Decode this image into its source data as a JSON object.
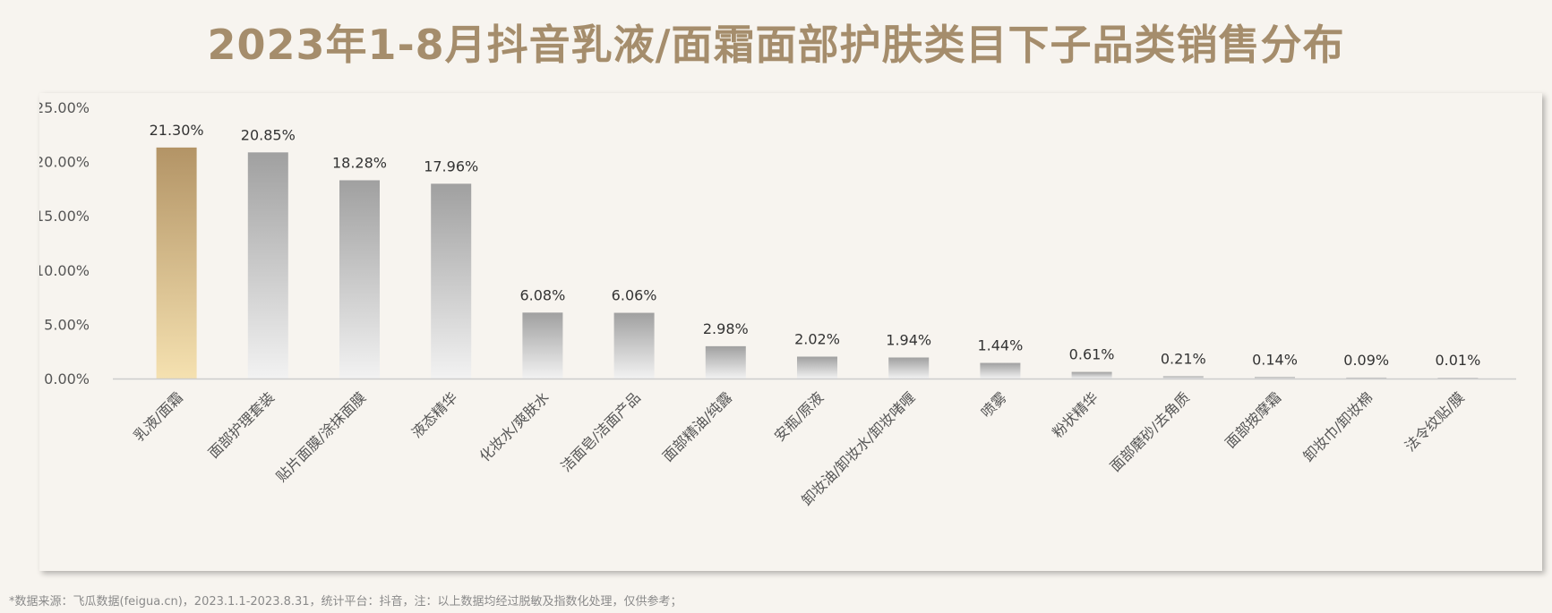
{
  "title": "2023年1-8月抖音乳液/面霜面部护肤类目下子品类销售分布",
  "footnote": "*数据来源：飞瓜数据(feigua.cn)，2023.1.1-2023.8.31，统计平台：抖音，注：以上数据均经过脱敏及指数化处理，仅供参考；",
  "colors": {
    "title": "#a58d6c",
    "highlight_top": "#b39466",
    "highlight_bottom": "#f5e1b0",
    "bar_top": "#a0a0a0",
    "bar_bottom": "#f2f2f2",
    "axis_text": "#555555",
    "axis_line": "#cccccc"
  },
  "chart_data": {
    "type": "bar",
    "categories": [
      "乳液/面霜",
      "面部护理套装",
      "贴片面膜/涂抹面膜",
      "液态精华",
      "化妆水/爽肤水",
      "洁面皂/洁面产品",
      "面部精油/纯露",
      "安瓶/原液",
      "卸妆油/卸妆水/卸妆啫喱",
      "喷雾",
      "粉状精华",
      "面部磨砂/去角质",
      "面部按摩霜",
      "卸妆巾/卸妆棉",
      "法令纹贴/膜"
    ],
    "values": [
      21.3,
      20.85,
      18.28,
      17.96,
      6.08,
      6.06,
      2.98,
      2.02,
      1.94,
      1.44,
      0.61,
      0.21,
      0.14,
      0.09,
      0.01
    ],
    "data_labels": [
      "21.30%",
      "20.85%",
      "18.28%",
      "17.96%",
      "6.08%",
      "6.06%",
      "2.98%",
      "2.02%",
      "1.94%",
      "1.44%",
      "0.61%",
      "0.21%",
      "0.14%",
      "0.09%",
      "0.01%"
    ],
    "yticks": [
      "0.00%",
      "5.00%",
      "10.00%",
      "15.00%",
      "20.00%",
      "25.00%"
    ],
    "ylim": [
      0,
      25
    ],
    "highlight_index": 0,
    "grid": false,
    "xlabel": "",
    "ylabel": ""
  }
}
